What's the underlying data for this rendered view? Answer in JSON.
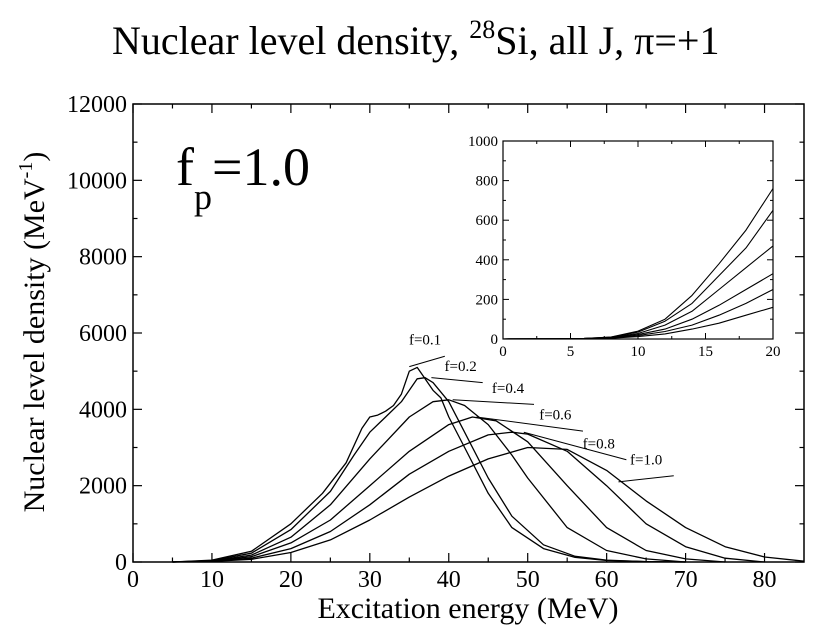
{
  "chart_data": [
    {
      "type": "line",
      "title_parts": {
        "prefix": "Nuclear level density, ",
        "isotope_mass": "28",
        "element": "Si",
        "suffix": ", all J, π=+1"
      },
      "xlabel": "Excitation energy (MeV)",
      "ylabel_parts": {
        "text": "Nuclear level density (MeV",
        "exp": "-1",
        "close": ")"
      },
      "annotation": {
        "base": "f",
        "sub": "p",
        "value": "=1.0"
      },
      "xlim": [
        0,
        85
      ],
      "ylim": [
        0,
        12000
      ],
      "xticks": [
        0,
        10,
        20,
        30,
        40,
        50,
        60,
        70,
        80
      ],
      "yticks": [
        0,
        2000,
        4000,
        6000,
        8000,
        10000,
        12000
      ],
      "series": [
        {
          "name": "f=0.1",
          "x": [
            5,
            10,
            15,
            20,
            24,
            27,
            29,
            30,
            31,
            32,
            33,
            34,
            35,
            36,
            37,
            38,
            39,
            40,
            42,
            45,
            48,
            52,
            56,
            60,
            65,
            70
          ],
          "y": [
            0,
            50,
            280,
            1000,
            1800,
            2600,
            3500,
            3800,
            3850,
            3950,
            4100,
            4400,
            5000,
            5100,
            4800,
            4500,
            4300,
            3800,
            3000,
            1800,
            900,
            350,
            120,
            40,
            10,
            0
          ]
        },
        {
          "name": "f=0.2",
          "x": [
            5,
            10,
            15,
            20,
            25,
            28,
            30,
            32,
            34,
            36,
            37,
            38,
            40,
            42,
            45,
            48,
            52,
            56,
            60,
            65,
            70
          ],
          "y": [
            0,
            40,
            230,
            850,
            1850,
            2800,
            3400,
            3800,
            4200,
            4800,
            4830,
            4700,
            4200,
            3400,
            2200,
            1200,
            450,
            150,
            50,
            10,
            0
          ]
        },
        {
          "name": "f=0.4",
          "x": [
            5,
            10,
            15,
            20,
            25,
            30,
            35,
            38,
            40,
            42,
            45,
            48,
            50,
            55,
            60,
            65,
            70
          ],
          "y": [
            0,
            30,
            180,
            650,
            1500,
            2700,
            3800,
            4200,
            4250,
            4100,
            3600,
            2800,
            2200,
            900,
            300,
            80,
            0
          ]
        },
        {
          "name": "f=0.6",
          "x": [
            5,
            10,
            15,
            20,
            25,
            30,
            35,
            40,
            43,
            46,
            50,
            55,
            60,
            65,
            70,
            75
          ],
          "y": [
            0,
            25,
            140,
            500,
            1100,
            2000,
            2900,
            3600,
            3800,
            3700,
            3150,
            2000,
            900,
            300,
            80,
            0
          ]
        },
        {
          "name": "f=0.8",
          "x": [
            5,
            10,
            15,
            20,
            25,
            30,
            35,
            40,
            45,
            48,
            50,
            55,
            60,
            65,
            70,
            75,
            80
          ],
          "y": [
            0,
            20,
            100,
            350,
            800,
            1500,
            2300,
            2900,
            3330,
            3400,
            3350,
            2900,
            2000,
            1000,
            400,
            100,
            0
          ]
        },
        {
          "name": "f=1.0",
          "x": [
            5,
            10,
            15,
            20,
            25,
            30,
            35,
            40,
            45,
            50,
            55,
            60,
            65,
            70,
            75,
            80,
            85
          ],
          "y": [
            0,
            15,
            70,
            250,
            580,
            1100,
            1700,
            2250,
            2700,
            3000,
            2950,
            2400,
            1600,
            900,
            400,
            130,
            20
          ]
        }
      ],
      "labels": [
        {
          "text": "f=0.1",
          "x": 37.0,
          "y": 5700
        },
        {
          "text": "f=0.2",
          "x": 41.5,
          "y": 5000
        },
        {
          "text": "f=0.4",
          "x": 47.5,
          "y": 4430
        },
        {
          "text": "f=0.6",
          "x": 53.5,
          "y": 3730
        },
        {
          "text": "f=0.8",
          "x": 59.0,
          "y": 2980
        },
        {
          "text": "f=1.0",
          "x": 65.0,
          "y": 2560
        }
      ],
      "leaders": [
        {
          "x1": 35.0,
          "y1": 5120,
          "x2": 39.5,
          "y2": 5390
        },
        {
          "x1": 37.8,
          "y1": 4830,
          "x2": 44.3,
          "y2": 4700
        },
        {
          "x1": 40.5,
          "y1": 4250,
          "x2": 50.8,
          "y2": 4130
        },
        {
          "x1": 43.5,
          "y1": 3800,
          "x2": 57.0,
          "y2": 3430
        },
        {
          "x1": 49.5,
          "y1": 3400,
          "x2": 62.5,
          "y2": 2680
        },
        {
          "x1": 61.5,
          "y1": 2100,
          "x2": 68.5,
          "y2": 2260
        }
      ]
    },
    {
      "type": "line",
      "title": "inset",
      "xlim": [
        0,
        20
      ],
      "ylim": [
        0,
        1000
      ],
      "xticks": [
        0,
        5,
        10,
        15,
        20
      ],
      "yticks": [
        0,
        200,
        400,
        600,
        800,
        1000
      ],
      "series": [
        {
          "name": "f=0.1",
          "x": [
            0,
            4,
            6,
            8,
            10,
            12,
            14,
            16,
            18,
            20
          ],
          "y": [
            0,
            1,
            3,
            10,
            40,
            100,
            220,
            380,
            550,
            760
          ]
        },
        {
          "name": "f=0.2",
          "x": [
            0,
            4,
            6,
            8,
            10,
            12,
            14,
            16,
            18,
            20
          ],
          "y": [
            0,
            1,
            3,
            9,
            35,
            90,
            180,
            320,
            460,
            650
          ]
        },
        {
          "name": "f=0.4",
          "x": [
            0,
            4,
            6,
            8,
            10,
            12,
            14,
            16,
            18,
            20
          ],
          "y": [
            0,
            1,
            2,
            8,
            28,
            70,
            140,
            250,
            360,
            470
          ]
        },
        {
          "name": "f=0.6",
          "x": [
            0,
            4,
            6,
            8,
            10,
            12,
            14,
            16,
            18,
            20
          ],
          "y": [
            0,
            1,
            2,
            6,
            22,
            50,
            100,
            170,
            250,
            330
          ]
        },
        {
          "name": "f=0.8",
          "x": [
            0,
            4,
            6,
            8,
            10,
            12,
            14,
            16,
            18,
            20
          ],
          "y": [
            0,
            1,
            2,
            5,
            17,
            38,
            70,
            120,
            180,
            250
          ]
        },
        {
          "name": "f=1.0",
          "x": [
            0,
            4,
            6,
            8,
            10,
            12,
            14,
            16,
            18,
            20
          ],
          "y": [
            0,
            0,
            1,
            4,
            12,
            26,
            50,
            80,
            120,
            160
          ]
        }
      ]
    }
  ]
}
